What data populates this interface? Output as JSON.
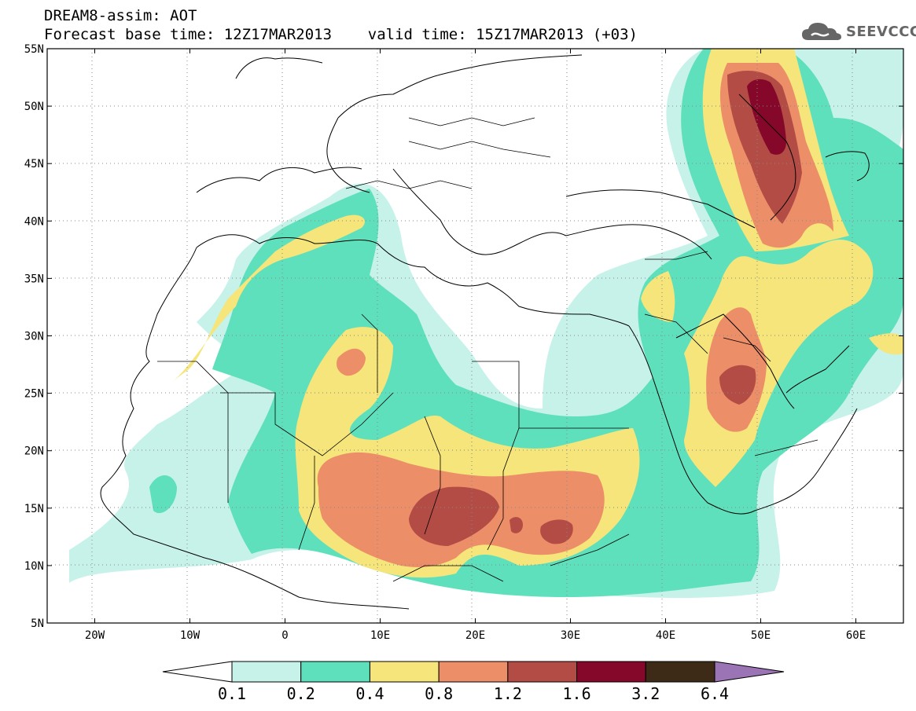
{
  "header": {
    "line1": "DREAM8-assim: AOT",
    "line2": "Forecast base time: 12Z17MAR2013    valid time: 15Z17MAR2013 (+03)"
  },
  "logo": {
    "text": "SEEVCCC",
    "icon": "cloud-icon"
  },
  "axes": {
    "lat_labels": [
      "55N",
      "50N",
      "45N",
      "40N",
      "35N",
      "30N",
      "25N",
      "20N",
      "15N",
      "10N",
      "5N"
    ],
    "lon_labels": [
      "20W",
      "10W",
      "0",
      "10E",
      "20E",
      "30E",
      "40E",
      "50E",
      "60E"
    ],
    "lat_range": [
      5,
      55
    ],
    "lon_range": [
      -25,
      65
    ],
    "grid": "dotted"
  },
  "colorbar": {
    "labels": [
      "0.1",
      "0.2",
      "0.4",
      "0.8",
      "1.2",
      "1.6",
      "3.2",
      "6.4"
    ],
    "colors": [
      "#ffffff",
      "#c6f2ea",
      "#5fe0bc",
      "#f5e57a",
      "#ec8e68",
      "#b24c44",
      "#85082a",
      "#3d2a17",
      "#9b74b6"
    ]
  }
}
